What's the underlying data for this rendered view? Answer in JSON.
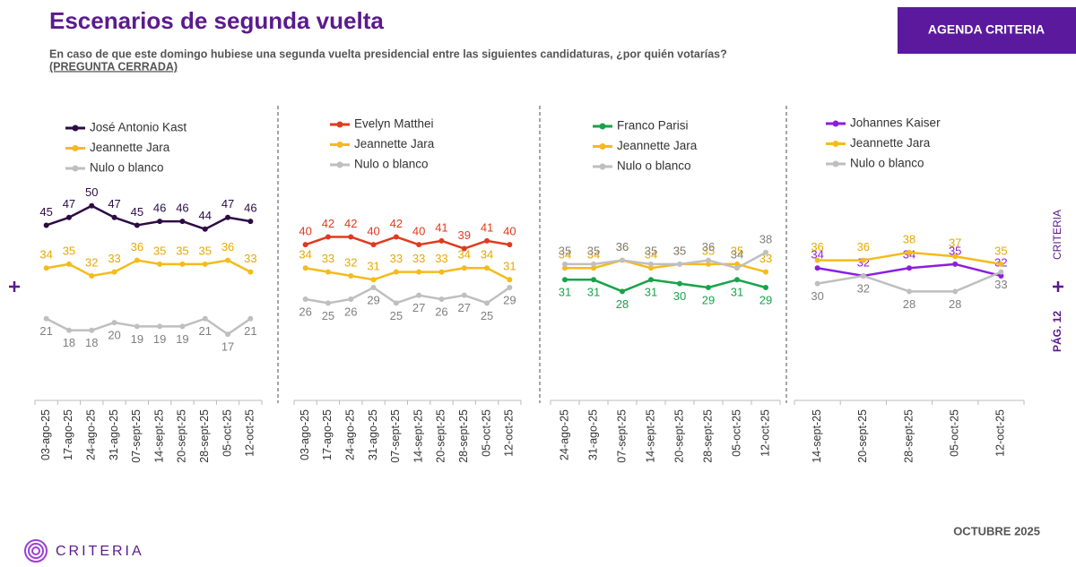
{
  "header": {
    "title": "Escenarios de segunda vuelta",
    "subtitle": "En caso de que este domingo hubiese una segunda vuelta presidencial entre las siguientes candidaturas, ¿por quién votarías?",
    "note": "(PREGUNTA CERRADA)",
    "badge": "AGENDA CRITERIA"
  },
  "side": {
    "brand": "CRITERIA",
    "page": "PÁG. 12"
  },
  "footer": {
    "logo": "CRITERIA",
    "date": "OCTUBRE 2025"
  },
  "chart_data": [
    {
      "type": "line",
      "ylim": [
        0,
        55
      ],
      "categories": [
        "03-ago-25",
        "17-ago-25",
        "24-ago-25",
        "31-ago-25",
        "07-sept-25",
        "14-sept-25",
        "20-sept-25",
        "28-sept-25",
        "05-oct-25",
        "12-oct-25"
      ],
      "series": [
        {
          "name": "José Antonio Kast",
          "color": "#2d0b45",
          "values": [
            45,
            47,
            50,
            47,
            45,
            46,
            46,
            44,
            47,
            46
          ]
        },
        {
          "name": "Jeannette Jara",
          "color": "#f5bb1a",
          "values": [
            34,
            35,
            32,
            33,
            36,
            35,
            35,
            35,
            36,
            33
          ]
        },
        {
          "name": "Nulo o blanco",
          "color": "#bfbfbf",
          "values": [
            21,
            18,
            18,
            20,
            19,
            19,
            19,
            21,
            17,
            21
          ]
        }
      ]
    },
    {
      "type": "line",
      "ylim": [
        0,
        55
      ],
      "categories": [
        "03-ago-25",
        "17-ago-25",
        "24-ago-25",
        "31-ago-25",
        "07-sept-25",
        "14-sept-25",
        "20-sept-25",
        "28-sept-25",
        "05-oct-25",
        "12-oct-25"
      ],
      "series": [
        {
          "name": "Evelyn Matthei",
          "color": "#e03a1e",
          "values": [
            40,
            42,
            42,
            40,
            42,
            40,
            41,
            39,
            41,
            40
          ]
        },
        {
          "name": "Jeannette Jara",
          "color": "#f5bb1a",
          "values": [
            34,
            33,
            32,
            31,
            33,
            33,
            33,
            34,
            34,
            31
          ]
        },
        {
          "name": "Nulo o blanco",
          "color": "#bfbfbf",
          "values": [
            26,
            25,
            26,
            29,
            25,
            27,
            26,
            27,
            25,
            29
          ]
        }
      ]
    },
    {
      "type": "line",
      "ylim": [
        0,
        55
      ],
      "categories": [
        "24-ago-25",
        "31-ago-25",
        "07-sept-25",
        "14-sept-25",
        "20-sept-25",
        "28-sept-25",
        "05-oct-25",
        "12-oct-25"
      ],
      "series": [
        {
          "name": "Franco Parisi",
          "color": "#1aa34a",
          "values": [
            31,
            31,
            28,
            31,
            30,
            29,
            31,
            29
          ]
        },
        {
          "name": "Jeannette Jara",
          "color": "#f5bb1a",
          "values": [
            34,
            34,
            36,
            34,
            35,
            35,
            35,
            33
          ]
        },
        {
          "name": "Nulo o blanco",
          "color": "#bfbfbf",
          "values": [
            35,
            35,
            36,
            35,
            35,
            36,
            34,
            38
          ]
        }
      ]
    },
    {
      "type": "line",
      "ylim": [
        0,
        55
      ],
      "categories": [
        "14-sept-25",
        "20-sept-25",
        "28-sept-25",
        "05-oct-25",
        "12-oct-25"
      ],
      "series": [
        {
          "name": "Johannes Kaiser",
          "color": "#8a1ee0",
          "values": [
            34,
            32,
            34,
            35,
            32
          ]
        },
        {
          "name": "Jeannette Jara",
          "color": "#f5bb1a",
          "values": [
            36,
            36,
            38,
            37,
            35
          ]
        },
        {
          "name": "Nulo o blanco",
          "color": "#bfbfbf",
          "values": [
            30,
            32,
            28,
            28,
            33
          ]
        }
      ]
    }
  ]
}
